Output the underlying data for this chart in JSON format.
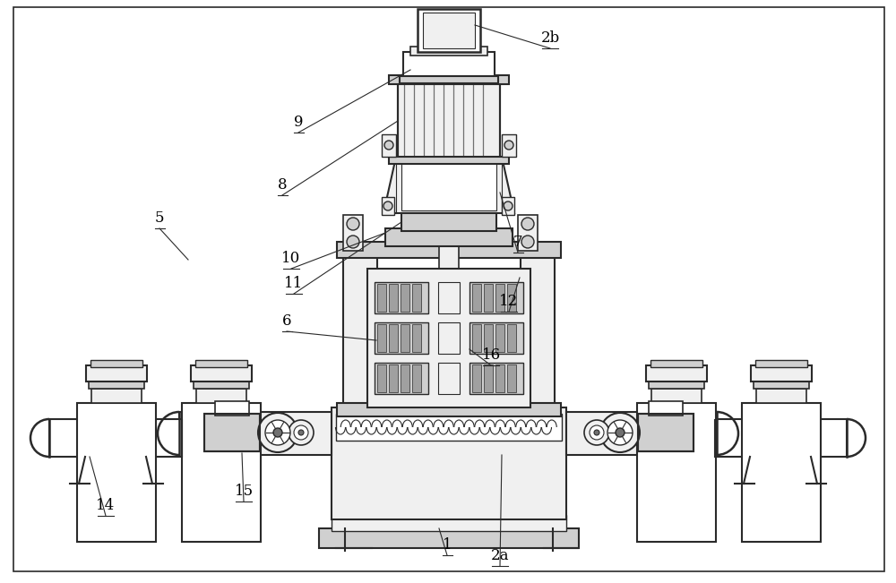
{
  "bg_color": "#ffffff",
  "lc": "#2a2a2a",
  "fg": "#f0f0f0",
  "fm": "#d0d0d0",
  "fd": "#a0a0a0",
  "fdd": "#707070",
  "white": "#ffffff"
}
